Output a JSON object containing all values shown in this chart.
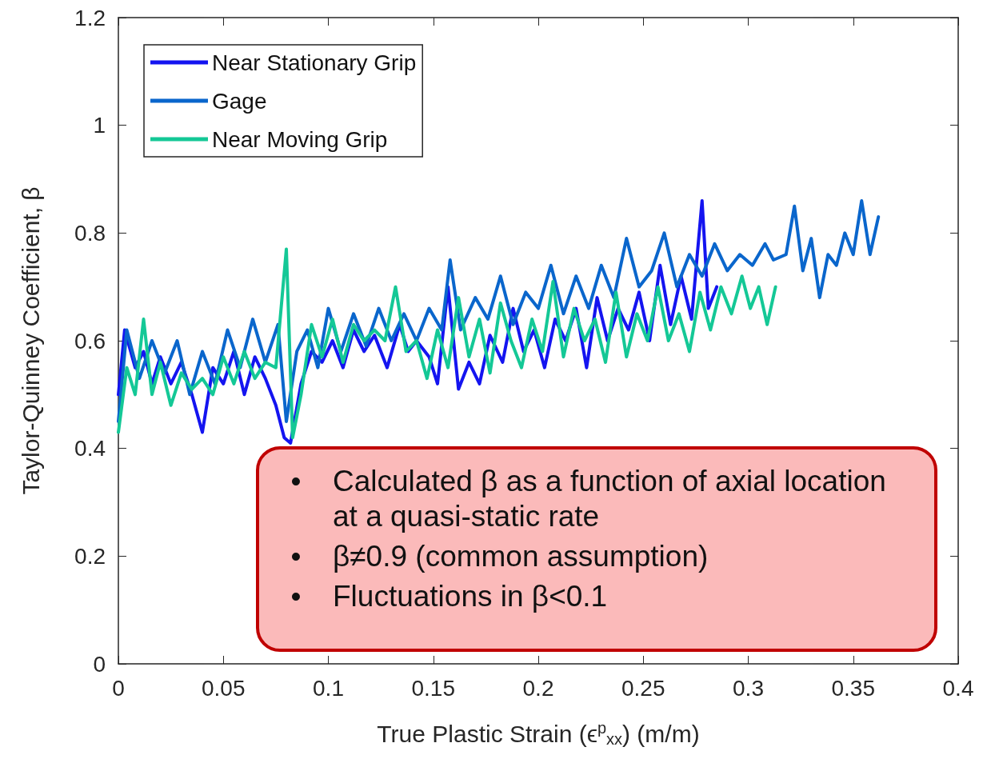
{
  "chart_data": {
    "type": "line",
    "xlabel": "True Plastic Strain (ϵ$^{p}$$_{xx}$) (m/m)",
    "ylabel": "Taylor-Quinney Coefficient, β",
    "xlim": [
      0,
      0.4
    ],
    "xticks": [
      0,
      0.05,
      0.1,
      0.15,
      0.2,
      0.25,
      0.3,
      0.35,
      0.4
    ],
    "ylim": [
      0,
      1.2
    ],
    "yticks": [
      0,
      0.2,
      0.4,
      0.6,
      0.8,
      1,
      1.2
    ],
    "grid": false,
    "legend": "top left",
    "marker": "none",
    "line_style": "solid",
    "annotations": [
      "• Calculated β as a function of axial location at a quasi-static rate",
      "• β≠0.9 (common assumption)",
      "• Fluctuations in β<0.1"
    ],
    "series": [
      {
        "name": "Near Stationary Grip",
        "color": "#1414f0",
        "x": [
          0,
          0.003,
          0.008,
          0.012,
          0.016,
          0.02,
          0.025,
          0.03,
          0.035,
          0.04,
          0.045,
          0.05,
          0.055,
          0.06,
          0.065,
          0.07,
          0.075,
          0.079,
          0.082,
          0.087,
          0.092,
          0.097,
          0.102,
          0.107,
          0.112,
          0.117,
          0.122,
          0.128,
          0.134,
          0.138,
          0.142,
          0.148,
          0.152,
          0.157,
          0.162,
          0.167,
          0.172,
          0.177,
          0.183,
          0.188,
          0.193,
          0.198,
          0.203,
          0.208,
          0.213,
          0.218,
          0.223,
          0.228,
          0.233,
          0.238,
          0.243,
          0.248,
          0.253,
          0.258,
          0.263,
          0.268,
          0.273,
          0.278,
          0.281,
          0.285
        ],
        "values": [
          0.5,
          0.62,
          0.55,
          0.58,
          0.52,
          0.57,
          0.52,
          0.56,
          0.5,
          0.43,
          0.55,
          0.52,
          0.58,
          0.5,
          0.57,
          0.53,
          0.48,
          0.42,
          0.41,
          0.52,
          0.58,
          0.56,
          0.6,
          0.55,
          0.62,
          0.58,
          0.61,
          0.55,
          0.63,
          0.58,
          0.6,
          0.57,
          0.52,
          0.7,
          0.51,
          0.56,
          0.52,
          0.61,
          0.56,
          0.66,
          0.58,
          0.62,
          0.55,
          0.64,
          0.6,
          0.66,
          0.55,
          0.68,
          0.6,
          0.66,
          0.62,
          0.69,
          0.6,
          0.74,
          0.63,
          0.72,
          0.64,
          0.86,
          0.66,
          0.7
        ]
      },
      {
        "name": "Gage",
        "color": "#0a66cc",
        "x": [
          0,
          0.004,
          0.01,
          0.016,
          0.022,
          0.028,
          0.034,
          0.04,
          0.046,
          0.052,
          0.058,
          0.064,
          0.07,
          0.076,
          0.08,
          0.085,
          0.09,
          0.095,
          0.1,
          0.106,
          0.112,
          0.118,
          0.124,
          0.13,
          0.136,
          0.142,
          0.148,
          0.154,
          0.158,
          0.163,
          0.17,
          0.176,
          0.182,
          0.188,
          0.194,
          0.2,
          0.206,
          0.212,
          0.218,
          0.224,
          0.23,
          0.236,
          0.242,
          0.248,
          0.254,
          0.26,
          0.266,
          0.272,
          0.278,
          0.284,
          0.29,
          0.296,
          0.302,
          0.308,
          0.312,
          0.318,
          0.322,
          0.326,
          0.33,
          0.334,
          0.338,
          0.342,
          0.346,
          0.35,
          0.354,
          0.358,
          0.362
        ],
        "values": [
          0.45,
          0.62,
          0.53,
          0.6,
          0.54,
          0.6,
          0.5,
          0.58,
          0.52,
          0.62,
          0.55,
          0.64,
          0.56,
          0.63,
          0.45,
          0.58,
          0.62,
          0.55,
          0.66,
          0.58,
          0.65,
          0.59,
          0.66,
          0.6,
          0.65,
          0.6,
          0.66,
          0.62,
          0.75,
          0.62,
          0.68,
          0.64,
          0.72,
          0.63,
          0.69,
          0.66,
          0.74,
          0.65,
          0.72,
          0.66,
          0.74,
          0.68,
          0.79,
          0.7,
          0.73,
          0.8,
          0.7,
          0.76,
          0.72,
          0.78,
          0.73,
          0.76,
          0.74,
          0.78,
          0.75,
          0.76,
          0.85,
          0.73,
          0.79,
          0.68,
          0.76,
          0.74,
          0.8,
          0.76,
          0.86,
          0.76,
          0.83
        ]
      },
      {
        "name": "Near Moving Grip",
        "color": "#14c896",
        "x": [
          0,
          0.004,
          0.008,
          0.012,
          0.016,
          0.02,
          0.025,
          0.03,
          0.035,
          0.04,
          0.045,
          0.05,
          0.055,
          0.06,
          0.065,
          0.07,
          0.075,
          0.08,
          0.083,
          0.087,
          0.092,
          0.097,
          0.102,
          0.107,
          0.112,
          0.117,
          0.122,
          0.127,
          0.132,
          0.137,
          0.142,
          0.147,
          0.152,
          0.157,
          0.162,
          0.167,
          0.172,
          0.177,
          0.182,
          0.187,
          0.192,
          0.197,
          0.202,
          0.207,
          0.212,
          0.217,
          0.222,
          0.227,
          0.232,
          0.237,
          0.242,
          0.247,
          0.252,
          0.257,
          0.262,
          0.267,
          0.272,
          0.277,
          0.282,
          0.287,
          0.292,
          0.297,
          0.301,
          0.305,
          0.309,
          0.313
        ],
        "values": [
          0.43,
          0.55,
          0.5,
          0.64,
          0.5,
          0.56,
          0.48,
          0.54,
          0.51,
          0.53,
          0.5,
          0.57,
          0.52,
          0.58,
          0.53,
          0.56,
          0.55,
          0.77,
          0.42,
          0.5,
          0.63,
          0.57,
          0.64,
          0.56,
          0.63,
          0.6,
          0.62,
          0.6,
          0.7,
          0.58,
          0.6,
          0.53,
          0.62,
          0.55,
          0.68,
          0.57,
          0.64,
          0.54,
          0.67,
          0.6,
          0.55,
          0.64,
          0.58,
          0.71,
          0.57,
          0.66,
          0.6,
          0.64,
          0.56,
          0.69,
          0.57,
          0.65,
          0.6,
          0.7,
          0.6,
          0.65,
          0.58,
          0.69,
          0.62,
          0.7,
          0.65,
          0.72,
          0.66,
          0.7,
          0.63,
          0.7
        ]
      }
    ]
  }
}
